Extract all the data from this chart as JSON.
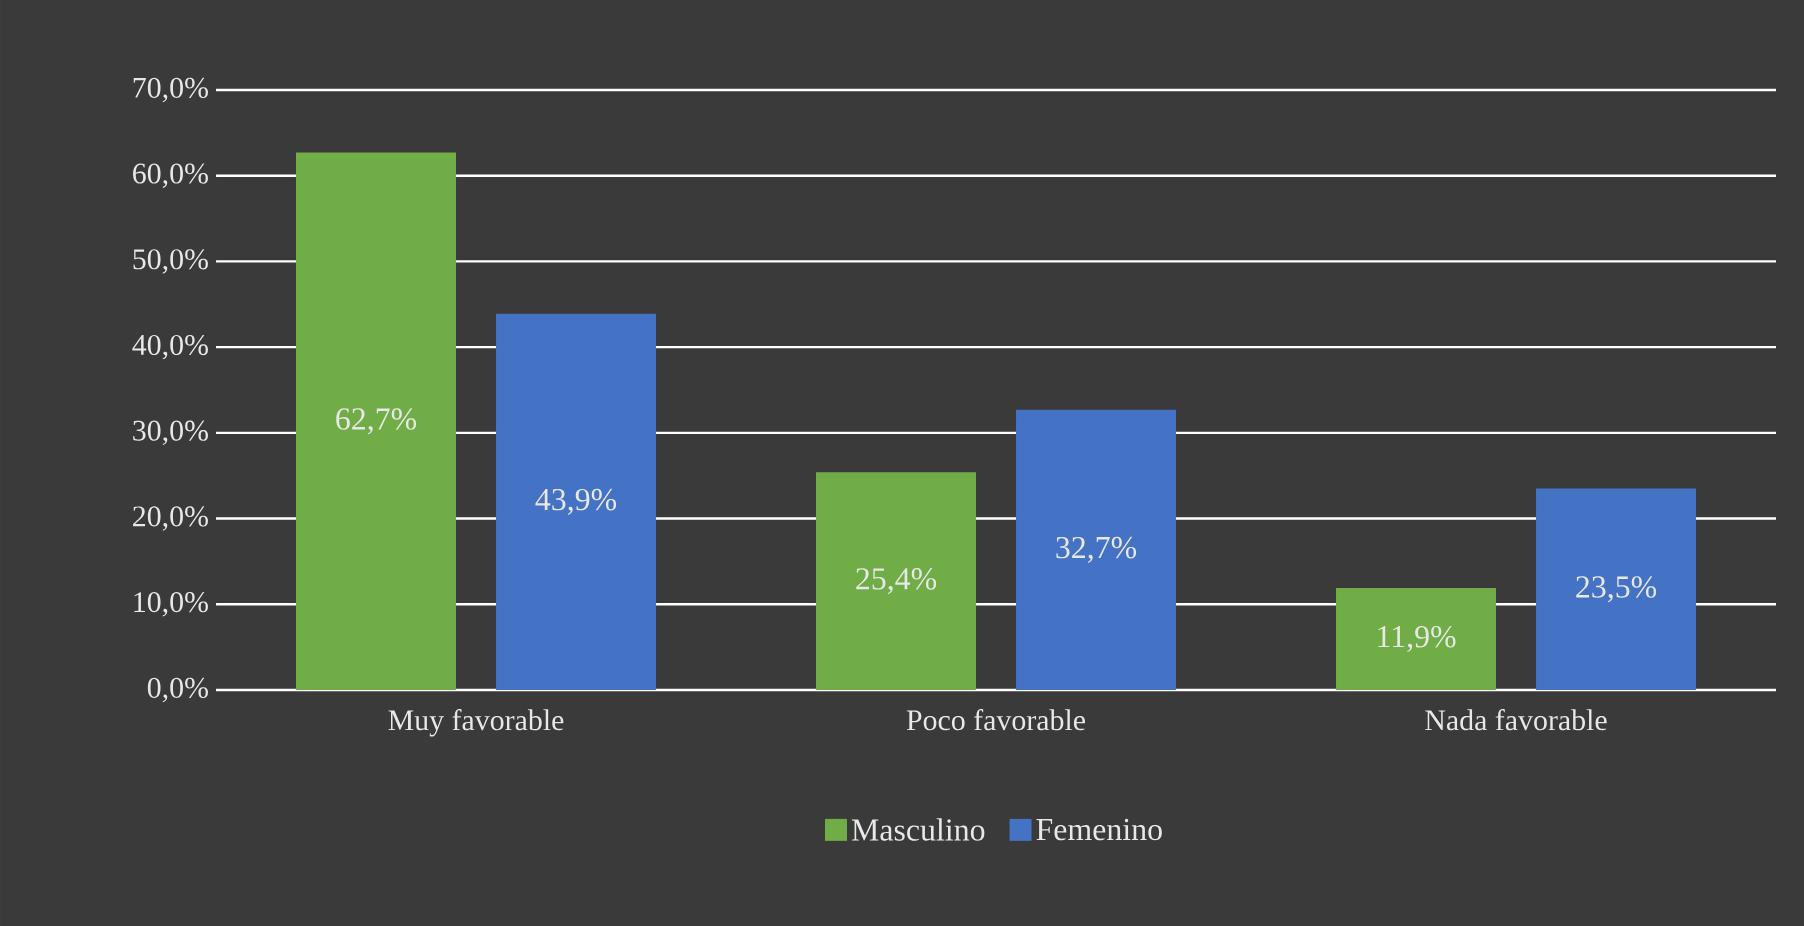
{
  "chart_data": {
    "type": "bar",
    "categories": [
      "Muy favorable",
      "Poco favorable",
      "Nada favorable"
    ],
    "series": [
      {
        "name": "Masculino",
        "color": "#70ad47",
        "values": [
          62.7,
          25.4,
          11.9
        ],
        "value_labels": [
          "62,7%",
          "25,4%",
          "11,9%"
        ]
      },
      {
        "name": "Femenino",
        "color": "#4472c4",
        "values": [
          43.9,
          32.7,
          23.5
        ],
        "value_labels": [
          "43,9%",
          "32,7%",
          "23,5%"
        ]
      }
    ],
    "ylim": [
      0,
      70
    ],
    "yticks": [
      {
        "value": 0,
        "label": "0,0%"
      },
      {
        "value": 10,
        "label": "10,0%"
      },
      {
        "value": 20,
        "label": "20,0%"
      },
      {
        "value": 30,
        "label": "30,0%"
      },
      {
        "value": 40,
        "label": "40,0%"
      },
      {
        "value": 50,
        "label": "50,0%"
      },
      {
        "value": 60,
        "label": "60,0%"
      },
      {
        "value": 70,
        "label": "70,0%"
      }
    ],
    "grid": "y",
    "legend": "bottom"
  }
}
